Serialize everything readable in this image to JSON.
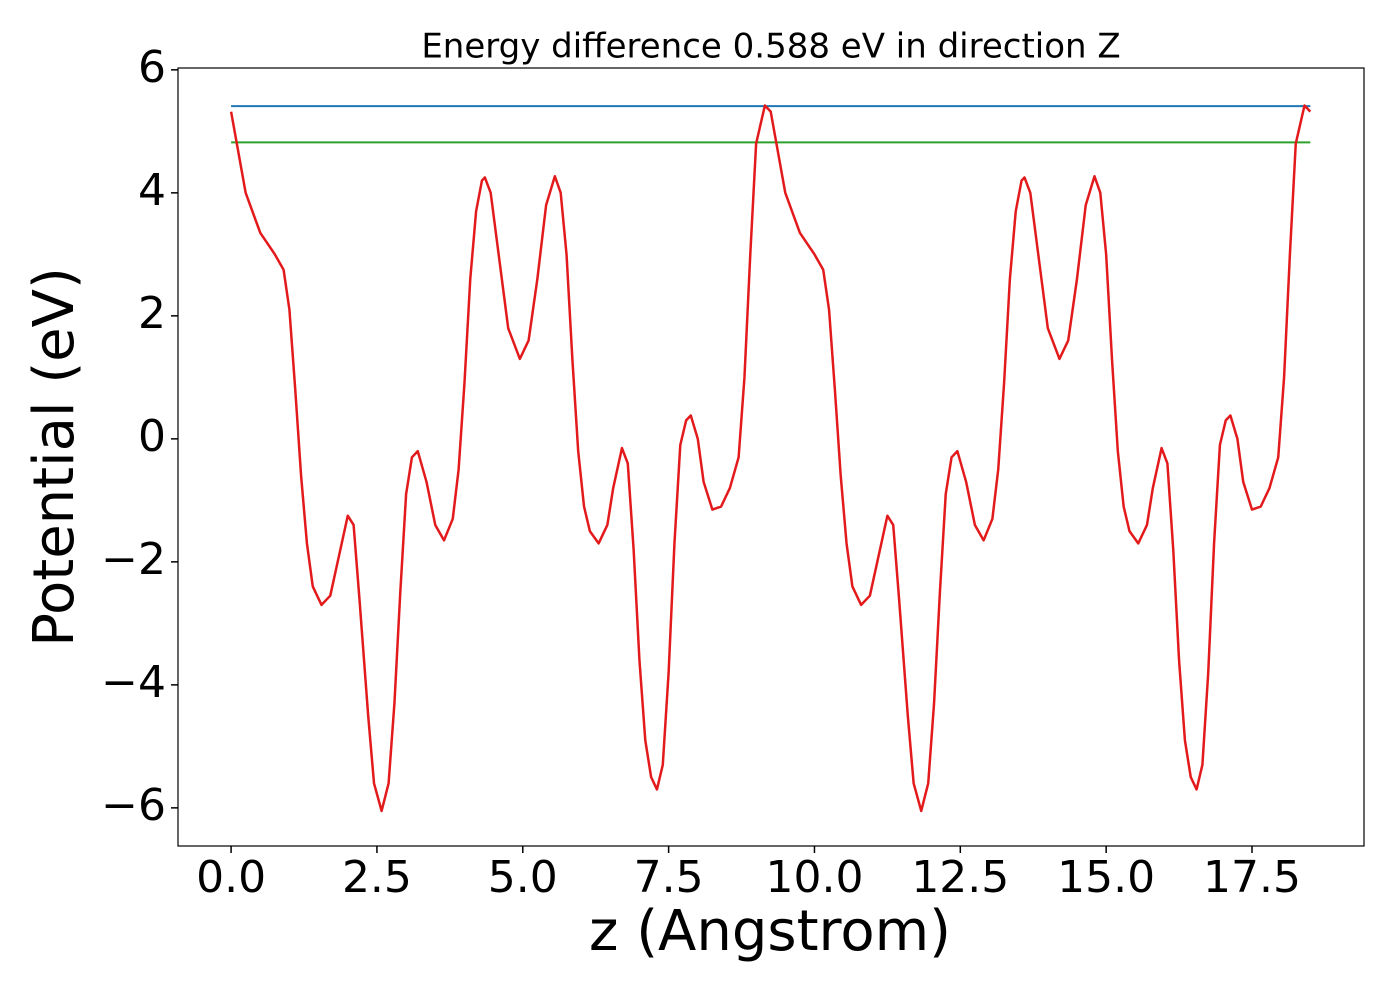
{
  "chart_data": {
    "type": "line",
    "title": "Energy difference 0.588 eV in direction Z",
    "xlabel": "z (Angstrom)",
    "ylabel": "Potential (eV)",
    "xlim": [
      -0.91,
      19.42
    ],
    "ylim": [
      -6.62,
      6.03
    ],
    "xticks": [
      {
        "value": 0,
        "label": "0.0"
      },
      {
        "value": 2.5,
        "label": "2.5"
      },
      {
        "value": 5,
        "label": "5.0"
      },
      {
        "value": 7.5,
        "label": "7.5"
      },
      {
        "value": 10,
        "label": "10.0"
      },
      {
        "value": 12.5,
        "label": "12.5"
      },
      {
        "value": 15,
        "label": "15.0"
      },
      {
        "value": 17.5,
        "label": "17.5"
      }
    ],
    "yticks": [
      {
        "value": -6,
        "label": "−6"
      },
      {
        "value": -4,
        "label": "−4"
      },
      {
        "value": -2,
        "label": "−2"
      },
      0,
      2,
      4,
      6
    ],
    "x": [
      0,
      0.25,
      0.5,
      0.75,
      0.9,
      1.0,
      1.1,
      1.2,
      1.3,
      1.4,
      1.55,
      1.7,
      1.85,
      2.0,
      2.1,
      2.2,
      2.35,
      2.45,
      2.58,
      2.7,
      2.8,
      2.9,
      3.0,
      3.1,
      3.2,
      3.35,
      3.5,
      3.65,
      3.8,
      3.9,
      4.0,
      4.1,
      4.2,
      4.3,
      4.35,
      4.45,
      4.6,
      4.75,
      4.95,
      5.1,
      5.25,
      5.4,
      5.55,
      5.65,
      5.75,
      5.85,
      5.95,
      6.05,
      6.15,
      6.3,
      6.45,
      6.55,
      6.7,
      6.8,
      6.9,
      7.0,
      7.1,
      7.2,
      7.3,
      7.4,
      7.5,
      7.6,
      7.7,
      7.8,
      7.88,
      8.0,
      8.1,
      8.25,
      8.4,
      8.55,
      8.7,
      8.8,
      8.9,
      9.0,
      9.15,
      9.25,
      9.5,
      9.75,
      10.0,
      10.15,
      10.25,
      10.35,
      10.45,
      10.55,
      10.65,
      10.8,
      10.95,
      11.1,
      11.25,
      11.35,
      11.45,
      11.6,
      11.7,
      11.83,
      11.95,
      12.05,
      12.15,
      12.25,
      12.35,
      12.45,
      12.6,
      12.75,
      12.9,
      13.05,
      13.15,
      13.25,
      13.35,
      13.45,
      13.55,
      13.6,
      13.7,
      13.85,
      14.0,
      14.2,
      14.35,
      14.5,
      14.65,
      14.8,
      14.9,
      15.0,
      15.1,
      15.2,
      15.3,
      15.4,
      15.55,
      15.7,
      15.8,
      15.95,
      16.05,
      16.15,
      16.25,
      16.35,
      16.45,
      16.55,
      16.65,
      16.75,
      16.85,
      16.95,
      17.05,
      17.13,
      17.25,
      17.35,
      17.5,
      17.65,
      17.8,
      17.95,
      18.05,
      18.15,
      18.25,
      18.4,
      18.5
    ],
    "series": [
      {
        "color": "#e31a1c",
        "values": [
          5.32,
          4.0,
          3.35,
          3.0,
          2.75,
          2.1,
          0.8,
          -0.6,
          -1.7,
          -2.4,
          -2.7,
          -2.55,
          -1.9,
          -1.25,
          -1.4,
          -2.6,
          -4.5,
          -5.6,
          -6.05,
          -5.6,
          -4.3,
          -2.5,
          -0.9,
          -0.3,
          -0.2,
          -0.7,
          -1.4,
          -1.65,
          -1.3,
          -0.5,
          0.9,
          2.6,
          3.7,
          4.2,
          4.25,
          4.0,
          2.9,
          1.8,
          1.3,
          1.6,
          2.6,
          3.8,
          4.27,
          4.0,
          3.0,
          1.3,
          -0.2,
          -1.1,
          -1.5,
          -1.7,
          -1.4,
          -0.8,
          -0.15,
          -0.4,
          -1.8,
          -3.6,
          -4.9,
          -5.5,
          -5.7,
          -5.3,
          -3.8,
          -1.7,
          -0.1,
          0.3,
          0.38,
          0.0,
          -0.7,
          -1.15,
          -1.1,
          -0.8,
          -0.3,
          1.0,
          3.0,
          4.8,
          5.42,
          5.32,
          4.0,
          3.35,
          3.0,
          2.75,
          2.1,
          0.8,
          -0.6,
          -1.7,
          -2.4,
          -2.7,
          -2.55,
          -1.9,
          -1.25,
          -1.4,
          -2.6,
          -4.5,
          -5.6,
          -6.05,
          -5.6,
          -4.3,
          -2.5,
          -0.9,
          -0.3,
          -0.2,
          -0.7,
          -1.4,
          -1.65,
          -1.3,
          -0.5,
          0.9,
          2.6,
          3.7,
          4.2,
          4.25,
          4.0,
          2.9,
          1.8,
          1.3,
          1.6,
          2.6,
          3.8,
          4.27,
          4.0,
          3.0,
          1.3,
          -0.2,
          -1.1,
          -1.5,
          -1.7,
          -1.4,
          -0.8,
          -0.15,
          -0.4,
          -1.8,
          -3.6,
          -4.9,
          -5.5,
          -5.7,
          -5.3,
          -3.8,
          -1.7,
          -0.1,
          0.3,
          0.38,
          0.0,
          -0.7,
          -1.15,
          -1.1,
          -0.8,
          -0.3,
          1.0,
          3.0,
          4.8,
          5.42,
          5.32
        ]
      }
    ],
    "hlines": [
      {
        "value": 5.41,
        "color": "#1f77b4"
      },
      {
        "value": 4.82,
        "color": "#2ca02c"
      }
    ]
  }
}
